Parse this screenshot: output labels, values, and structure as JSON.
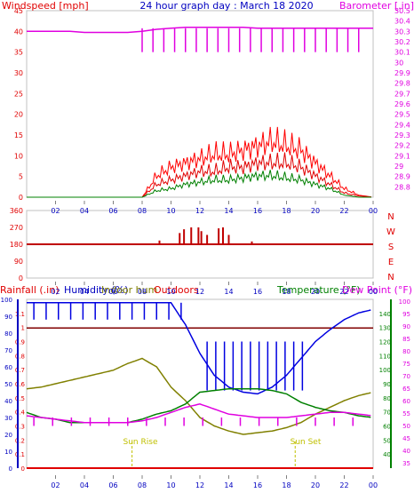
{
  "colors": {
    "wind": "#e00000",
    "baro": "#e000e0",
    "gust": "#ff0000",
    "avgwind": "#008000",
    "winddir": "#008080",
    "humidity": "#0000e0",
    "indoor": "#808000",
    "temp": "#008000",
    "dewpoint": "#e000e0",
    "rain": "#e00000",
    "title": "#0000c0",
    "dirline": "#c00000",
    "refline": "#800000",
    "sunmark": "#c0c000"
  },
  "chart_data": [
    {
      "type": "line",
      "title": "24 hour graph day : March 18 2020",
      "ylabel": "Windspeed [mph]",
      "y2label": "Barometer [.in]",
      "x_ticks": [
        "02",
        "04",
        "06",
        "08",
        "10",
        "12",
        "14",
        "16",
        "18",
        "20",
        "22",
        "00"
      ],
      "ylim": [
        0,
        45
      ],
      "y_ticks": [
        "0",
        "5",
        "10",
        "15",
        "20",
        "25",
        "30",
        "35",
        "40",
        "45"
      ],
      "y2lim": [
        28.7,
        30.5
      ],
      "y2_ticks": [
        "28.8",
        "28.9",
        "29",
        "29.1",
        "29.2",
        "29.3",
        "29.4",
        "29.5",
        "29.6",
        "29.7",
        "29.8",
        "29.9",
        "30",
        "30.1",
        "30.2",
        "30.3",
        "30.4",
        "30.5"
      ],
      "x": [
        0,
        1,
        2,
        3,
        4,
        5,
        6,
        7,
        8,
        9,
        10,
        11,
        12,
        13,
        14,
        15,
        16,
        17,
        18,
        19,
        20,
        21,
        22,
        23,
        24
      ],
      "series": [
        {
          "name": "Windspeed [mph]",
          "key": "gust",
          "values": [
            0,
            0,
            0,
            0,
            0,
            0,
            0,
            0,
            0,
            5,
            7,
            8,
            9,
            10,
            10,
            11,
            12,
            13,
            12,
            11,
            8,
            5,
            2,
            0.5,
            0
          ]
        },
        {
          "name": "",
          "key": "wind",
          "values": [
            0,
            0,
            0,
            0,
            0,
            0,
            0,
            0,
            0,
            3,
            4,
            5,
            6,
            6,
            7,
            7,
            8,
            8,
            8,
            7,
            5,
            3,
            1,
            0.3,
            0
          ]
        },
        {
          "name": "",
          "key": "avgwind",
          "values": [
            0,
            0,
            0,
            0,
            0,
            0,
            0,
            0,
            0,
            1.5,
            2,
            3,
            3.5,
            4,
            4,
            4.5,
            5,
            5,
            4.5,
            4,
            3,
            2,
            0.5,
            0,
            0
          ]
        },
        {
          "name": "Barometer [.in]",
          "key": "baro",
          "values": [
            30.3,
            30.3,
            30.3,
            30.3,
            30.29,
            30.29,
            30.29,
            30.29,
            30.3,
            30.32,
            30.33,
            30.34,
            30.34,
            30.34,
            30.34,
            30.34,
            30.33,
            30.33,
            30.33,
            30.33,
            30.33,
            30.33,
            30.33,
            30.33,
            30.33
          ]
        }
      ]
    },
    {
      "type": "scatter",
      "ylabel": "",
      "y2_letters": [
        "N",
        "W",
        "S",
        "E",
        "N"
      ],
      "ylim": [
        0,
        360
      ],
      "y_ticks": [
        "0",
        "90",
        "180",
        "270",
        "360"
      ],
      "x_ticks": [
        "02",
        "04",
        "06",
        "08",
        "10",
        "12",
        "14",
        "16",
        "18",
        "20",
        "22",
        "00"
      ],
      "x": [
        0,
        8.9,
        9.2,
        10.6,
        10.9,
        11.4,
        11.9,
        12.1,
        12.5,
        13.3,
        13.6,
        14.0,
        15.6,
        19.0,
        24
      ],
      "series": [
        {
          "name": "Wind direction",
          "values": [
            180,
            182,
            200,
            240,
            260,
            270,
            270,
            250,
            230,
            265,
            270,
            230,
            195,
            182,
            180
          ]
        }
      ]
    },
    {
      "type": "line",
      "ylabel": "Rainfall (.in)",
      "ylabel2": "Humidity (%)",
      "ylabel3": "Indoor hum",
      "ylabel4": "Outdoors",
      "y2label": "Temperature (°F)",
      "y2label2": "Dew Point (°F)",
      "annotations": [
        "Sun Rise",
        "Sun Set"
      ],
      "x_ticks": [
        "02",
        "04",
        "06",
        "08",
        "10",
        "12",
        "14",
        "16",
        "18",
        "20",
        "22",
        "00"
      ],
      "rain_lim": [
        0,
        1.2
      ],
      "rain_ticks": [
        "0",
        "0.1",
        "0.2",
        "0.3",
        "0.4",
        "0.5",
        "0.6",
        "0.7",
        "0.8",
        "0.9",
        "1",
        "1.1"
      ],
      "hum_lim": [
        0,
        100
      ],
      "hum_ticks": [
        "0",
        "10",
        "20",
        "30",
        "40",
        "50",
        "60",
        "70",
        "80",
        "90",
        "100"
      ],
      "temp_lim": [
        30,
        150
      ],
      "temp_ticks": [
        "40",
        "50",
        "60",
        "70",
        "80",
        "90",
        "100",
        "110",
        "120",
        "130",
        "140"
      ],
      "temp_ticks_right": [
        "35",
        "40",
        "45",
        "50",
        "55",
        "60",
        "65",
        "70",
        "75",
        "80",
        "85",
        "90",
        "95",
        "100"
      ],
      "x": [
        0,
        1,
        2,
        3,
        4,
        5,
        6,
        7,
        8,
        9,
        10,
        11,
        12,
        13,
        14,
        15,
        16,
        17,
        18,
        19,
        20,
        21,
        22,
        23,
        24
      ],
      "series": [
        {
          "name": "Outdoors",
          "key": "humidity",
          "values": [
            98,
            98,
            98,
            98,
            98,
            98,
            98,
            98,
            98,
            98,
            98,
            85,
            68,
            55,
            48,
            45,
            44,
            48,
            55,
            65,
            75,
            82,
            88,
            92,
            94
          ]
        },
        {
          "name": "Indoor hum",
          "key": "indoor",
          "values": [
            47,
            48,
            50,
            52,
            54,
            56,
            58,
            62,
            65,
            60,
            48,
            40,
            30,
            25,
            22,
            20,
            21,
            22,
            24,
            27,
            32,
            36,
            40,
            43,
            45
          ]
        },
        {
          "name": "Temperature (°F)",
          "key": "temp",
          "values": [
            33,
            30,
            29,
            27,
            27,
            27,
            27,
            27,
            29,
            32,
            34,
            38,
            45,
            46,
            47,
            47,
            47,
            46,
            44,
            39,
            36,
            34,
            33,
            31,
            30
          ]
        },
        {
          "name": "Dew Point (°F)",
          "key": "dewpoint",
          "values": [
            31,
            30,
            29,
            28,
            27,
            27,
            27,
            27,
            28,
            30,
            33,
            36,
            38,
            35,
            32,
            31,
            30,
            30,
            30,
            31,
            32,
            33,
            33,
            32,
            31
          ]
        }
      ],
      "reference_line": 83
    }
  ],
  "labels": {
    "title": "24 hour graph day : March 18 2020",
    "windspeed": "Windspeed [mph]",
    "barometer": "Barometer [.in]",
    "rainfall": "Rainfall (.in)",
    "humidity": "Humidity (%)",
    "indoor": "Indoor hum",
    "outdoors": "Outdoors",
    "temperature": "Temperature (°F)",
    "dewpoint": "Dew Point (°F)",
    "sunrise": "Sun Rise",
    "sunset": "Sun Set"
  }
}
